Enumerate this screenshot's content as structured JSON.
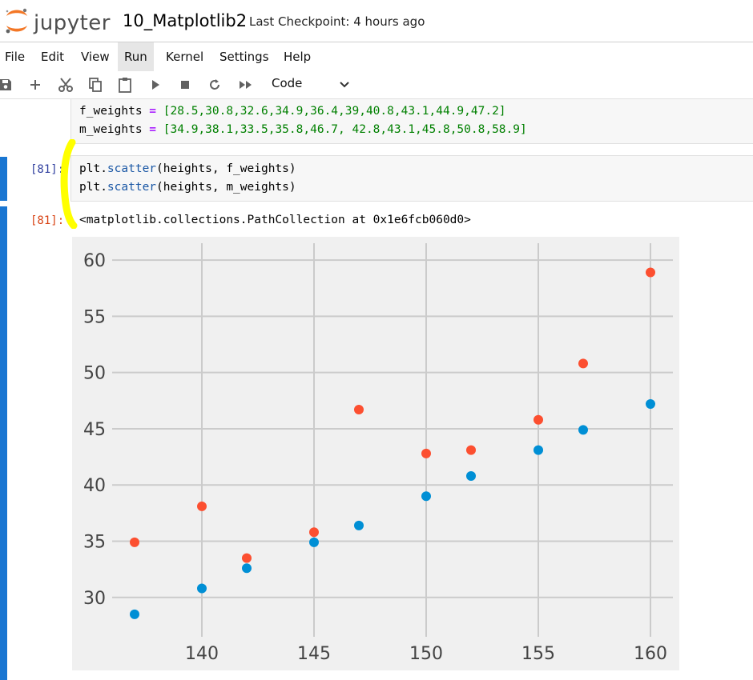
{
  "header": {
    "logo_text": "jupyter",
    "notebook_title": "10_Matplotlib2",
    "checkpoint": "Last Checkpoint: 4 hours ago"
  },
  "menu": [
    "File",
    "Edit",
    "View",
    "Run",
    "Kernel",
    "Settings",
    "Help"
  ],
  "menu_active": "Run",
  "toolbar": {
    "icons": [
      "save-icon",
      "add-icon",
      "cut-icon",
      "copy-icon",
      "paste-icon",
      "run-icon",
      "stop-icon",
      "restart-icon",
      "fast-forward-icon"
    ],
    "cell_type": "Code"
  },
  "cells": {
    "prev_cell": {
      "line1_var": "f_weights",
      "line1_op": " = ",
      "line1_vals": "[28.5,30.8,32.6,34.9,36.4,39,40.8,43.1,44.9,47.2]",
      "line2_var": "m_weights",
      "line2_op": " = ",
      "line2_vals": "[34.9,38.1,33.5,35.8,46.7, 42.8,43.1,45.8,50.8,58.9]"
    },
    "input_cell": {
      "prompt": "[81]:",
      "line1_obj": "plt.",
      "line1_fn": "scatter",
      "line1_args": "(heights, f_weights)",
      "line2_obj": "plt.",
      "line2_fn": "scatter",
      "line2_args": "(heights, m_weights)"
    },
    "output_cell": {
      "prompt": "[81]:",
      "text": "<matplotlib.collections.PathCollection at 0x1e6fcb060d0>"
    }
  },
  "chart_data": {
    "type": "scatter",
    "x": [
      137,
      140,
      142,
      145,
      147,
      150,
      152,
      155,
      157,
      160
    ],
    "series": [
      {
        "values": [
          28.5,
          30.8,
          32.6,
          34.9,
          36.4,
          39,
          40.8,
          43.1,
          44.9,
          47.2
        ],
        "color": "#008fd5"
      },
      {
        "values": [
          34.9,
          38.1,
          33.5,
          35.8,
          46.7,
          42.8,
          43.1,
          45.8,
          50.8,
          58.9
        ],
        "color": "#fc4f30"
      }
    ],
    "xticks": [
      140,
      145,
      150,
      155,
      160
    ],
    "yticks": [
      30,
      35,
      40,
      45,
      50,
      55,
      60
    ],
    "xlim": [
      136,
      161
    ],
    "ylim": [
      26.5,
      61.5
    ],
    "grid": true,
    "style": "fivethirtyeight",
    "background": "#f0f0f0",
    "grid_color": "#cbcbcb"
  }
}
